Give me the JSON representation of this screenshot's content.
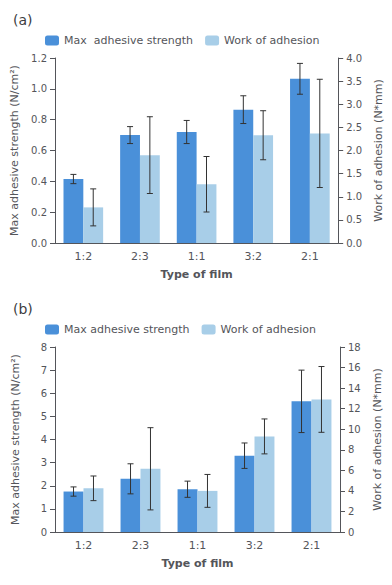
{
  "chart_data": [
    {
      "type": "bar",
      "title": "(a)",
      "categories": [
        "1:2",
        "2:3",
        "1:1",
        "3:2",
        "2:1"
      ],
      "xlabel": "Type of film",
      "ylabel": "Max adhesive strength (N/cm²)",
      "y2label": "Work of adhesion (N*mm)",
      "ylim": [
        0,
        1.2
      ],
      "yticks": [
        {
          "value": 0,
          "label": "0.0"
        },
        0.2,
        0.4,
        0.6,
        0.8,
        {
          "value": 1.0,
          "label": "1.0"
        },
        1.2
      ],
      "y2lim": [
        0,
        4.0
      ],
      "y2ticks": [
        {
          "value": 0,
          "label": "0.0"
        },
        0.5,
        {
          "value": 1.0,
          "label": "1.0"
        },
        1.5,
        {
          "value": 2.0,
          "label": "2.0"
        },
        2.5,
        {
          "value": 3.0,
          "label": "3.0"
        },
        3.5,
        {
          "value": 4.0,
          "label": "4.0"
        }
      ],
      "series": [
        {
          "name": "Max  adhesive strength",
          "color": "#4A90D9",
          "values": [
            0.415,
            0.7,
            0.72,
            0.865,
            1.065
          ],
          "errors": [
            0.03,
            0.055,
            0.075,
            0.09,
            0.1
          ]
        },
        {
          "name": "Work of adhesion",
          "color": "#A8CEE8",
          "axis": "y2",
          "values": [
            0.77,
            1.9,
            1.27,
            2.33,
            2.37
          ],
          "errors": [
            0.4,
            0.83,
            0.6,
            0.53,
            1.17
          ]
        }
      ],
      "legend": "upper left",
      "grid": false
    },
    {
      "type": "bar",
      "title": "(b)",
      "categories": [
        "1:2",
        "2:3",
        "1:1",
        "3:2",
        "2:1"
      ],
      "xlabel": "Type of film",
      "ylabel": "Max adhesive strength (N/cm²)",
      "y2label": "Work of adhesion (N*mm)",
      "ylim": [
        0,
        8
      ],
      "yticks": [
        0,
        1,
        2,
        3,
        4,
        5,
        6,
        7,
        8
      ],
      "y2lim": [
        0,
        18
      ],
      "y2ticks": [
        0,
        2,
        4,
        6,
        8,
        10,
        12,
        14,
        16,
        18
      ],
      "series": [
        {
          "name": "Max adhesive strength",
          "color": "#4A90D9",
          "values": [
            1.75,
            2.3,
            1.85,
            3.3,
            5.65
          ],
          "errors": [
            0.2,
            0.65,
            0.35,
            0.55,
            1.35
          ]
        },
        {
          "name": "Work of adhesion",
          "color": "#A8CEE8",
          "axis": "y2",
          "values": [
            4.25,
            6.15,
            4.0,
            9.3,
            12.9
          ],
          "errors": [
            1.2,
            4.0,
            1.6,
            1.7,
            3.2
          ]
        }
      ],
      "legend": "upper left",
      "grid": false
    }
  ]
}
